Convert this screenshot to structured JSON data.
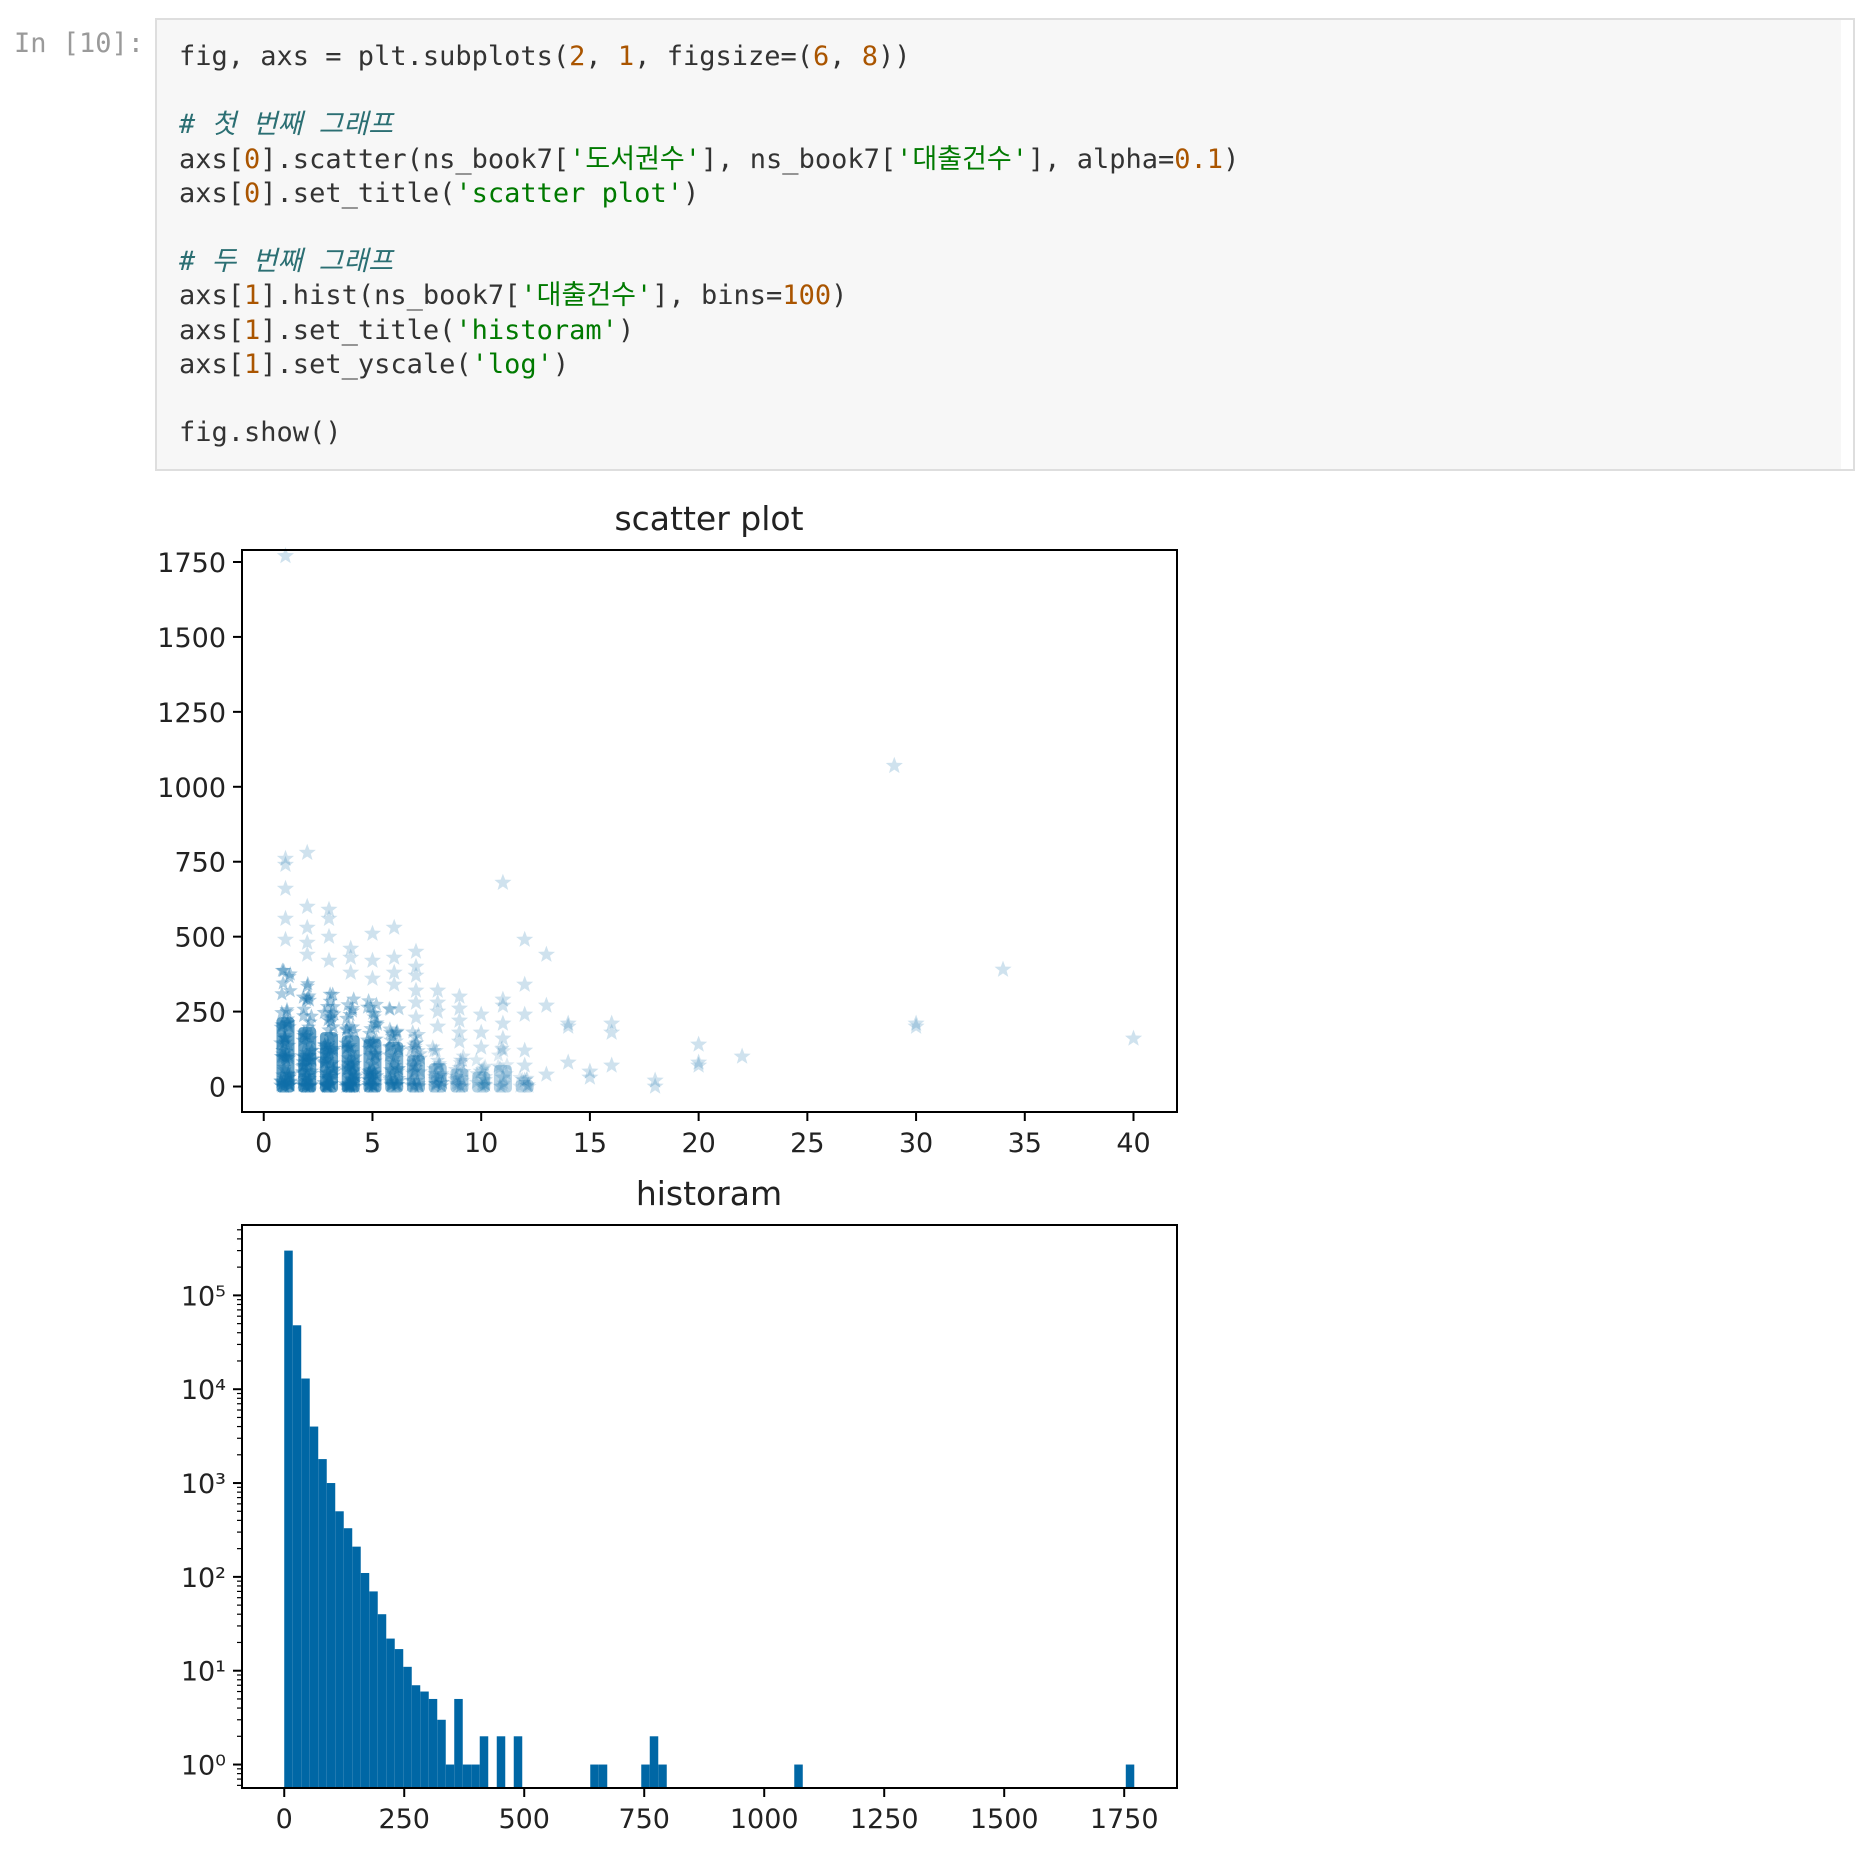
{
  "cell": {
    "prompt": "In [10]:",
    "lines": [
      [
        {
          "t": "fig, axs = plt.subplots(",
          "c": "plain"
        },
        {
          "t": "2",
          "c": "num"
        },
        {
          "t": ", ",
          "c": "plain"
        },
        {
          "t": "1",
          "c": "num"
        },
        {
          "t": ", figsize=(",
          "c": "plain"
        },
        {
          "t": "6",
          "c": "num"
        },
        {
          "t": ", ",
          "c": "plain"
        },
        {
          "t": "8",
          "c": "num"
        },
        {
          "t": "))",
          "c": "plain"
        }
      ],
      [],
      [
        {
          "t": "# 첫 번째 그래프",
          "c": "comment"
        }
      ],
      [
        {
          "t": "axs[",
          "c": "plain"
        },
        {
          "t": "0",
          "c": "num"
        },
        {
          "t": "].scatter(ns_book7[",
          "c": "plain"
        },
        {
          "t": "'도서권수'",
          "c": "str"
        },
        {
          "t": "], ns_book7[",
          "c": "plain"
        },
        {
          "t": "'대출건수'",
          "c": "str"
        },
        {
          "t": "], alpha=",
          "c": "plain"
        },
        {
          "t": "0.1",
          "c": "num"
        },
        {
          "t": ")",
          "c": "plain"
        }
      ],
      [
        {
          "t": "axs[",
          "c": "plain"
        },
        {
          "t": "0",
          "c": "num"
        },
        {
          "t": "].set_title(",
          "c": "plain"
        },
        {
          "t": "'scatter plot'",
          "c": "str"
        },
        {
          "t": ")",
          "c": "plain"
        }
      ],
      [],
      [
        {
          "t": "# 두 번째 그래프",
          "c": "comment"
        }
      ],
      [
        {
          "t": "axs[",
          "c": "plain"
        },
        {
          "t": "1",
          "c": "num"
        },
        {
          "t": "].hist(ns_book7[",
          "c": "plain"
        },
        {
          "t": "'대출건수'",
          "c": "str"
        },
        {
          "t": "], bins=",
          "c": "plain"
        },
        {
          "t": "100",
          "c": "num"
        },
        {
          "t": ")",
          "c": "plain"
        }
      ],
      [
        {
          "t": "axs[",
          "c": "plain"
        },
        {
          "t": "1",
          "c": "num"
        },
        {
          "t": "].set_title(",
          "c": "plain"
        },
        {
          "t": "'historam'",
          "c": "str"
        },
        {
          "t": ")",
          "c": "plain"
        }
      ],
      [
        {
          "t": "axs[",
          "c": "plain"
        },
        {
          "t": "1",
          "c": "num"
        },
        {
          "t": "].set_yscale(",
          "c": "plain"
        },
        {
          "t": "'log'",
          "c": "str"
        },
        {
          "t": ")",
          "c": "plain"
        }
      ],
      [],
      [
        {
          "t": "fig.show()",
          "c": "plain"
        }
      ]
    ]
  },
  "colors": {
    "plain": "#333333",
    "num": "#aa5500",
    "str": "#007a00",
    "comment": "#2b6f73",
    "marker": "#0f6ea8",
    "bar": "#0067a5",
    "axis": "#000000",
    "text": "#222222"
  },
  "chart_data": [
    {
      "type": "scatter",
      "title": "scatter plot",
      "marker": "star",
      "alpha": 0.1,
      "xlim": [
        -1,
        42
      ],
      "ylim": [
        -85,
        1790
      ],
      "xticks": [
        0,
        5,
        10,
        15,
        20,
        25,
        30,
        35,
        40
      ],
      "yticks": [
        0,
        250,
        500,
        750,
        1000,
        1250,
        1500,
        1750
      ],
      "columns": [
        {
          "x": 1,
          "ymax": 420,
          "density": 1.0
        },
        {
          "x": 2,
          "ymax": 360,
          "density": 1.0
        },
        {
          "x": 3,
          "ymax": 330,
          "density": 1.0
        },
        {
          "x": 4,
          "ymax": 310,
          "density": 0.95
        },
        {
          "x": 5,
          "ymax": 290,
          "density": 0.85
        },
        {
          "x": 6,
          "ymax": 270,
          "density": 0.7
        },
        {
          "x": 7,
          "ymax": 190,
          "density": 0.55
        },
        {
          "x": 8,
          "ymax": 140,
          "density": 0.4
        },
        {
          "x": 9,
          "ymax": 110,
          "density": 0.3
        },
        {
          "x": 10,
          "ymax": 90,
          "density": 0.25
        },
        {
          "x": 11,
          "ymax": 130,
          "density": 0.2
        },
        {
          "x": 12,
          "ymax": 40,
          "density": 0.15
        }
      ],
      "points": [
        {
          "x": 1,
          "y": 1770
        },
        {
          "x": 1,
          "y": 760
        },
        {
          "x": 1,
          "y": 740
        },
        {
          "x": 1,
          "y": 660
        },
        {
          "x": 1,
          "y": 560
        },
        {
          "x": 1,
          "y": 490
        },
        {
          "x": 2,
          "y": 780
        },
        {
          "x": 2,
          "y": 600
        },
        {
          "x": 2,
          "y": 530
        },
        {
          "x": 2,
          "y": 480
        },
        {
          "x": 2,
          "y": 440
        },
        {
          "x": 3,
          "y": 590
        },
        {
          "x": 3,
          "y": 560
        },
        {
          "x": 3,
          "y": 500
        },
        {
          "x": 3,
          "y": 420
        },
        {
          "x": 4,
          "y": 460
        },
        {
          "x": 4,
          "y": 430
        },
        {
          "x": 4,
          "y": 380
        },
        {
          "x": 5,
          "y": 510
        },
        {
          "x": 5,
          "y": 420
        },
        {
          "x": 5,
          "y": 360
        },
        {
          "x": 6,
          "y": 530
        },
        {
          "x": 6,
          "y": 430
        },
        {
          "x": 6,
          "y": 380
        },
        {
          "x": 6,
          "y": 340
        },
        {
          "x": 7,
          "y": 450
        },
        {
          "x": 7,
          "y": 400
        },
        {
          "x": 7,
          "y": 370
        },
        {
          "x": 7,
          "y": 320
        },
        {
          "x": 7,
          "y": 280
        },
        {
          "x": 7,
          "y": 230
        },
        {
          "x": 8,
          "y": 320
        },
        {
          "x": 8,
          "y": 280
        },
        {
          "x": 8,
          "y": 250
        },
        {
          "x": 8,
          "y": 200
        },
        {
          "x": 9,
          "y": 300
        },
        {
          "x": 9,
          "y": 260
        },
        {
          "x": 9,
          "y": 220
        },
        {
          "x": 9,
          "y": 180
        },
        {
          "x": 9,
          "y": 150
        },
        {
          "x": 10,
          "y": 240
        },
        {
          "x": 10,
          "y": 180
        },
        {
          "x": 10,
          "y": 130
        },
        {
          "x": 10,
          "y": 50
        },
        {
          "x": 11,
          "y": 680
        },
        {
          "x": 11,
          "y": 290
        },
        {
          "x": 11,
          "y": 270
        },
        {
          "x": 11,
          "y": 210
        },
        {
          "x": 11,
          "y": 160
        },
        {
          "x": 11,
          "y": 30
        },
        {
          "x": 12,
          "y": 490
        },
        {
          "x": 12,
          "y": 340
        },
        {
          "x": 12,
          "y": 240
        },
        {
          "x": 12,
          "y": 120
        },
        {
          "x": 12,
          "y": 70
        },
        {
          "x": 12,
          "y": 20
        },
        {
          "x": 13,
          "y": 440
        },
        {
          "x": 13,
          "y": 270
        },
        {
          "x": 13,
          "y": 40
        },
        {
          "x": 14,
          "y": 210
        },
        {
          "x": 14,
          "y": 200
        },
        {
          "x": 14,
          "y": 80
        },
        {
          "x": 15,
          "y": 50
        },
        {
          "x": 15,
          "y": 30
        },
        {
          "x": 16,
          "y": 210
        },
        {
          "x": 16,
          "y": 180
        },
        {
          "x": 16,
          "y": 70
        },
        {
          "x": 18,
          "y": 20
        },
        {
          "x": 18,
          "y": 0
        },
        {
          "x": 20,
          "y": 140
        },
        {
          "x": 20,
          "y": 80
        },
        {
          "x": 20,
          "y": 70
        },
        {
          "x": 22,
          "y": 100
        },
        {
          "x": 29,
          "y": 1070
        },
        {
          "x": 30,
          "y": 210
        },
        {
          "x": 30,
          "y": 200
        },
        {
          "x": 34,
          "y": 390
        },
        {
          "x": 40,
          "y": 160
        }
      ]
    },
    {
      "type": "bar",
      "title": "historam",
      "xlim": [
        -88,
        1860
      ],
      "ylog": true,
      "ylim_exp": [
        -0.25,
        5.75
      ],
      "xticks": [
        0,
        250,
        500,
        750,
        1000,
        1250,
        1500,
        1750
      ],
      "ytick_exponents": [
        0,
        1,
        2,
        3,
        4,
        5
      ],
      "ytick_labels": [
        "10⁰",
        "10¹",
        "10²",
        "10³",
        "10⁴",
        "10⁵"
      ],
      "bins": [
        0,
        1771
      ],
      "bin_count": 100,
      "counts": [
        300000,
        48000,
        13000,
        4000,
        1800,
        1000,
        500,
        330,
        210,
        110,
        70,
        40,
        22,
        17,
        11,
        7,
        6,
        5,
        3,
        1,
        5,
        1,
        1,
        2,
        0,
        2,
        0,
        2,
        0,
        0,
        0,
        0,
        0,
        0,
        0,
        0,
        1,
        1,
        0,
        0,
        0,
        0,
        1,
        2,
        1,
        0,
        0,
        0,
        0,
        0,
        0,
        0,
        0,
        0,
        0,
        0,
        0,
        0,
        0,
        0,
        1,
        0,
        0,
        0,
        0,
        0,
        0,
        0,
        0,
        0,
        0,
        0,
        0,
        0,
        0,
        0,
        0,
        0,
        0,
        0,
        0,
        0,
        0,
        0,
        0,
        0,
        0,
        0,
        0,
        0,
        0,
        0,
        0,
        0,
        0,
        0,
        0,
        0,
        0,
        1
      ]
    }
  ]
}
